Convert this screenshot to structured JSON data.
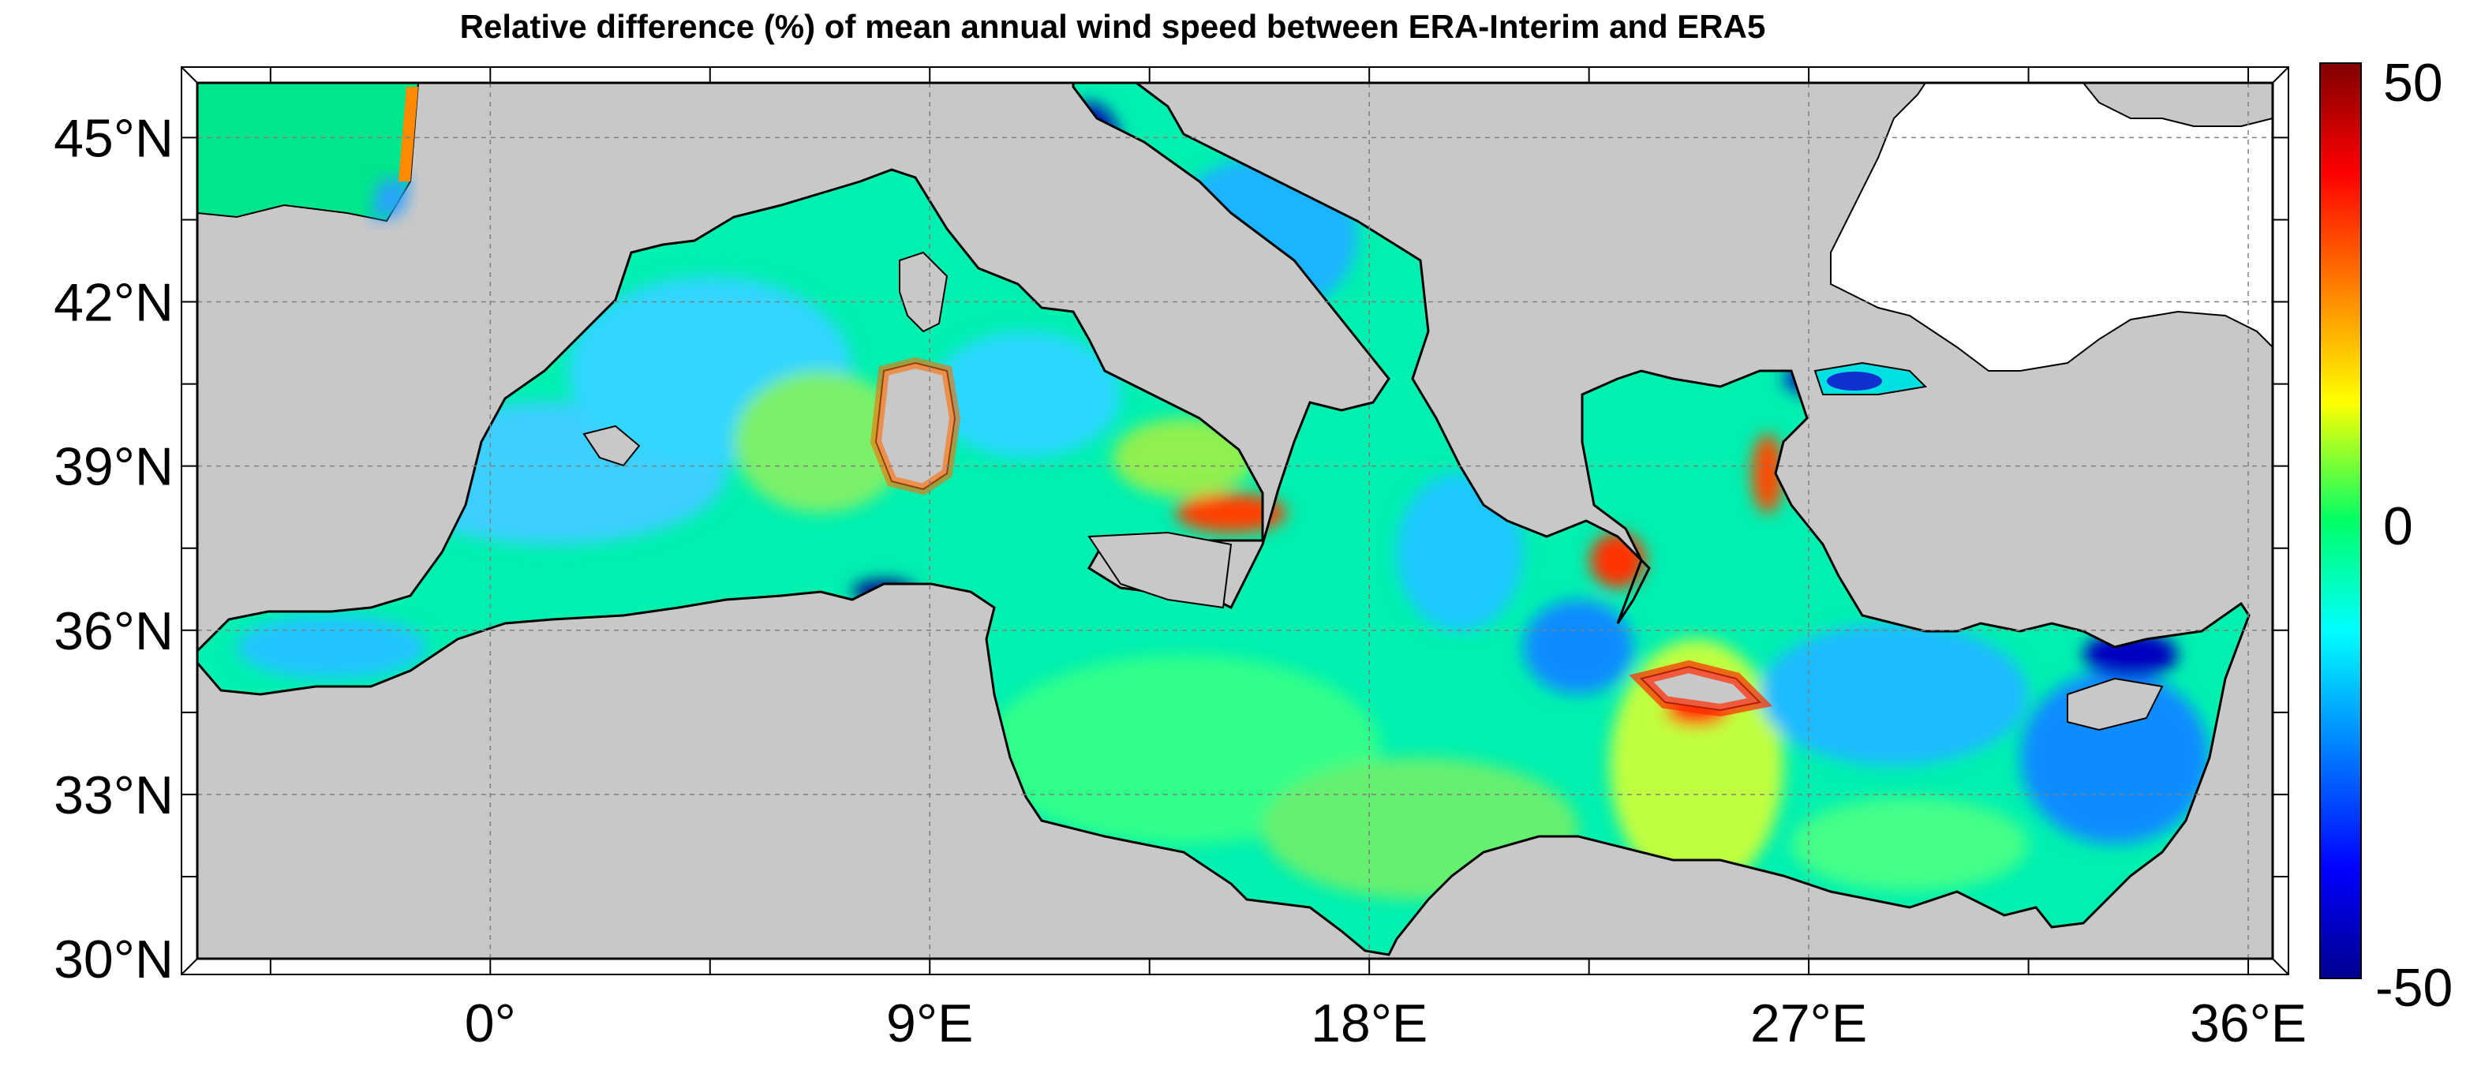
{
  "title": "Relative difference (%) of mean annual wind speed between ERA-Interim and ERA5",
  "map": {
    "region": "Mediterranean Sea",
    "lon_range": [
      -6,
      36.5
    ],
    "lat_range": [
      30,
      46
    ],
    "lat_ticks": [
      {
        "value": 30,
        "label": "30°N"
      },
      {
        "value": 33,
        "label": "33°N"
      },
      {
        "value": 36,
        "label": "36°N"
      },
      {
        "value": 39,
        "label": "39°N"
      },
      {
        "value": 42,
        "label": "42°N"
      },
      {
        "value": 45,
        "label": "45°N"
      }
    ],
    "lon_ticks": [
      {
        "value": 0,
        "label": "0°"
      },
      {
        "value": 9,
        "label": "9°E"
      },
      {
        "value": 18,
        "label": "18°E"
      },
      {
        "value": 27,
        "label": "27°E"
      },
      {
        "value": 36,
        "label": "36°E"
      }
    ],
    "land_color": "#c8c8c8",
    "outside_domain_color": "#ffffff",
    "gridlines": "dashed"
  },
  "colorbar": {
    "min": -50,
    "max": 50,
    "labels": [
      "50",
      "0",
      "-50"
    ],
    "colormap": "jet",
    "colors": [
      "#00008f",
      "#0000ff",
      "#00ffff",
      "#00ff66",
      "#ffff00",
      "#ff0000",
      "#800000"
    ]
  }
}
